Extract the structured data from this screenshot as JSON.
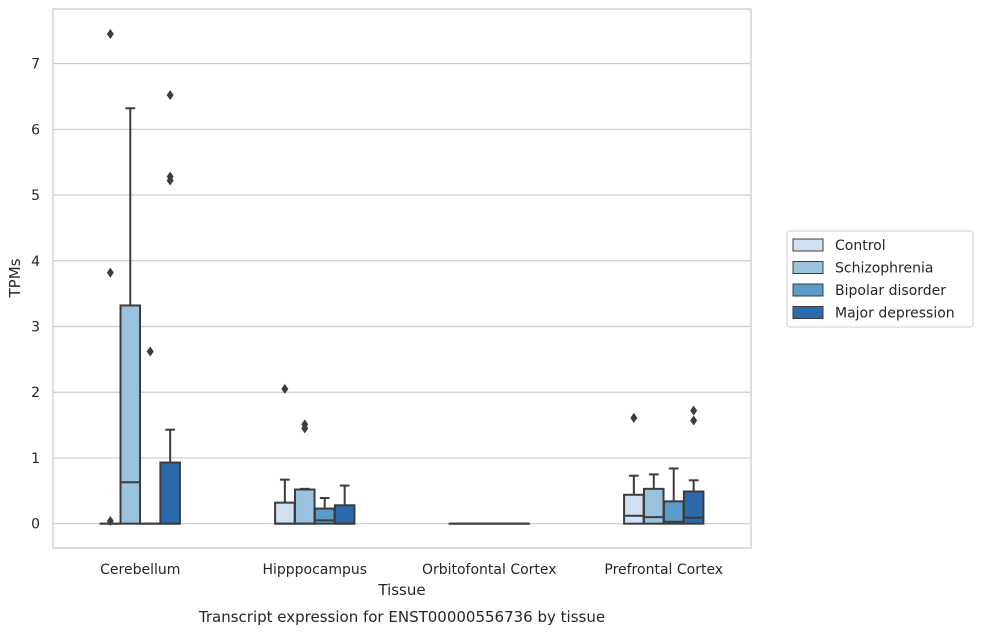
{
  "chart_data": {
    "type": "box",
    "title": "",
    "caption": "Transcript expression for ENST00000556736 by tissue",
    "xlabel": "Tissue",
    "ylabel": "TPMs",
    "ylim": [
      -0.37,
      7.83
    ],
    "yticks": [
      "0",
      "1",
      "2",
      "3",
      "4",
      "5",
      "6",
      "7"
    ],
    "categories": [
      "Cerebellum",
      "Hipppocampus",
      "Orbitofontal Cortex",
      "Prefrontal Cortex"
    ],
    "grid": "horizontal",
    "legend_position": "right",
    "series": [
      {
        "name": "Control",
        "color": "#d0e1f2",
        "boxes": [
          {
            "q1": 0.0,
            "median": 0.0,
            "q3": 0.0,
            "whislo": 0.0,
            "whishi": 0.0,
            "fliers": [
              0.04,
              3.82,
              7.45
            ]
          },
          {
            "q1": 0.0,
            "median": 0.0,
            "q3": 0.32,
            "whislo": 0.0,
            "whishi": 0.67,
            "fliers": [
              2.05
            ]
          },
          {
            "q1": 0.0,
            "median": 0.0,
            "q3": 0.0,
            "whislo": 0.0,
            "whishi": 0.0,
            "fliers": []
          },
          {
            "q1": 0.0,
            "median": 0.12,
            "q3": 0.44,
            "whislo": 0.0,
            "whishi": 0.73,
            "fliers": [
              1.61
            ]
          }
        ]
      },
      {
        "name": "Schizophrenia",
        "color": "#9ac1dd",
        "boxes": [
          {
            "q1": 0.0,
            "median": 0.63,
            "q3": 3.32,
            "whislo": 0.0,
            "whishi": 6.32,
            "fliers": []
          },
          {
            "q1": 0.0,
            "median": 0.0,
            "q3": 0.52,
            "whislo": 0.0,
            "whishi": 0.53,
            "fliers": [
              1.45,
              1.51
            ]
          },
          {
            "q1": 0.0,
            "median": 0.0,
            "q3": 0.0,
            "whislo": 0.0,
            "whishi": 0.0,
            "fliers": []
          },
          {
            "q1": 0.0,
            "median": 0.1,
            "q3": 0.53,
            "whislo": 0.0,
            "whishi": 0.75,
            "fliers": []
          }
        ]
      },
      {
        "name": "Bipolar disorder",
        "color": "#5b9bc9",
        "boxes": [
          {
            "q1": 0.0,
            "median": 0.0,
            "q3": 0.0,
            "whislo": 0.0,
            "whishi": 0.0,
            "fliers": [
              2.62
            ]
          },
          {
            "q1": 0.0,
            "median": 0.05,
            "q3": 0.23,
            "whislo": 0.0,
            "whishi": 0.39,
            "fliers": []
          },
          {
            "q1": 0.0,
            "median": 0.0,
            "q3": 0.0,
            "whislo": 0.0,
            "whishi": 0.0,
            "fliers": []
          },
          {
            "q1": 0.0,
            "median": 0.03,
            "q3": 0.34,
            "whislo": 0.0,
            "whishi": 0.84,
            "fliers": []
          }
        ]
      },
      {
        "name": "Major depression",
        "color": "#2a6aad",
        "boxes": [
          {
            "q1": 0.0,
            "median": 0.0,
            "q3": 0.93,
            "whislo": 0.0,
            "whishi": 1.43,
            "fliers": [
              5.22,
              5.28,
              6.52
            ]
          },
          {
            "q1": 0.0,
            "median": 0.0,
            "q3": 0.28,
            "whislo": 0.0,
            "whishi": 0.58,
            "fliers": []
          },
          {
            "q1": 0.0,
            "median": 0.0,
            "q3": 0.0,
            "whislo": 0.0,
            "whishi": 0.0,
            "fliers": []
          },
          {
            "q1": 0.0,
            "median": 0.09,
            "q3": 0.49,
            "whislo": 0.0,
            "whishi": 0.66,
            "fliers": [
              1.57,
              1.72
            ]
          }
        ]
      }
    ]
  }
}
